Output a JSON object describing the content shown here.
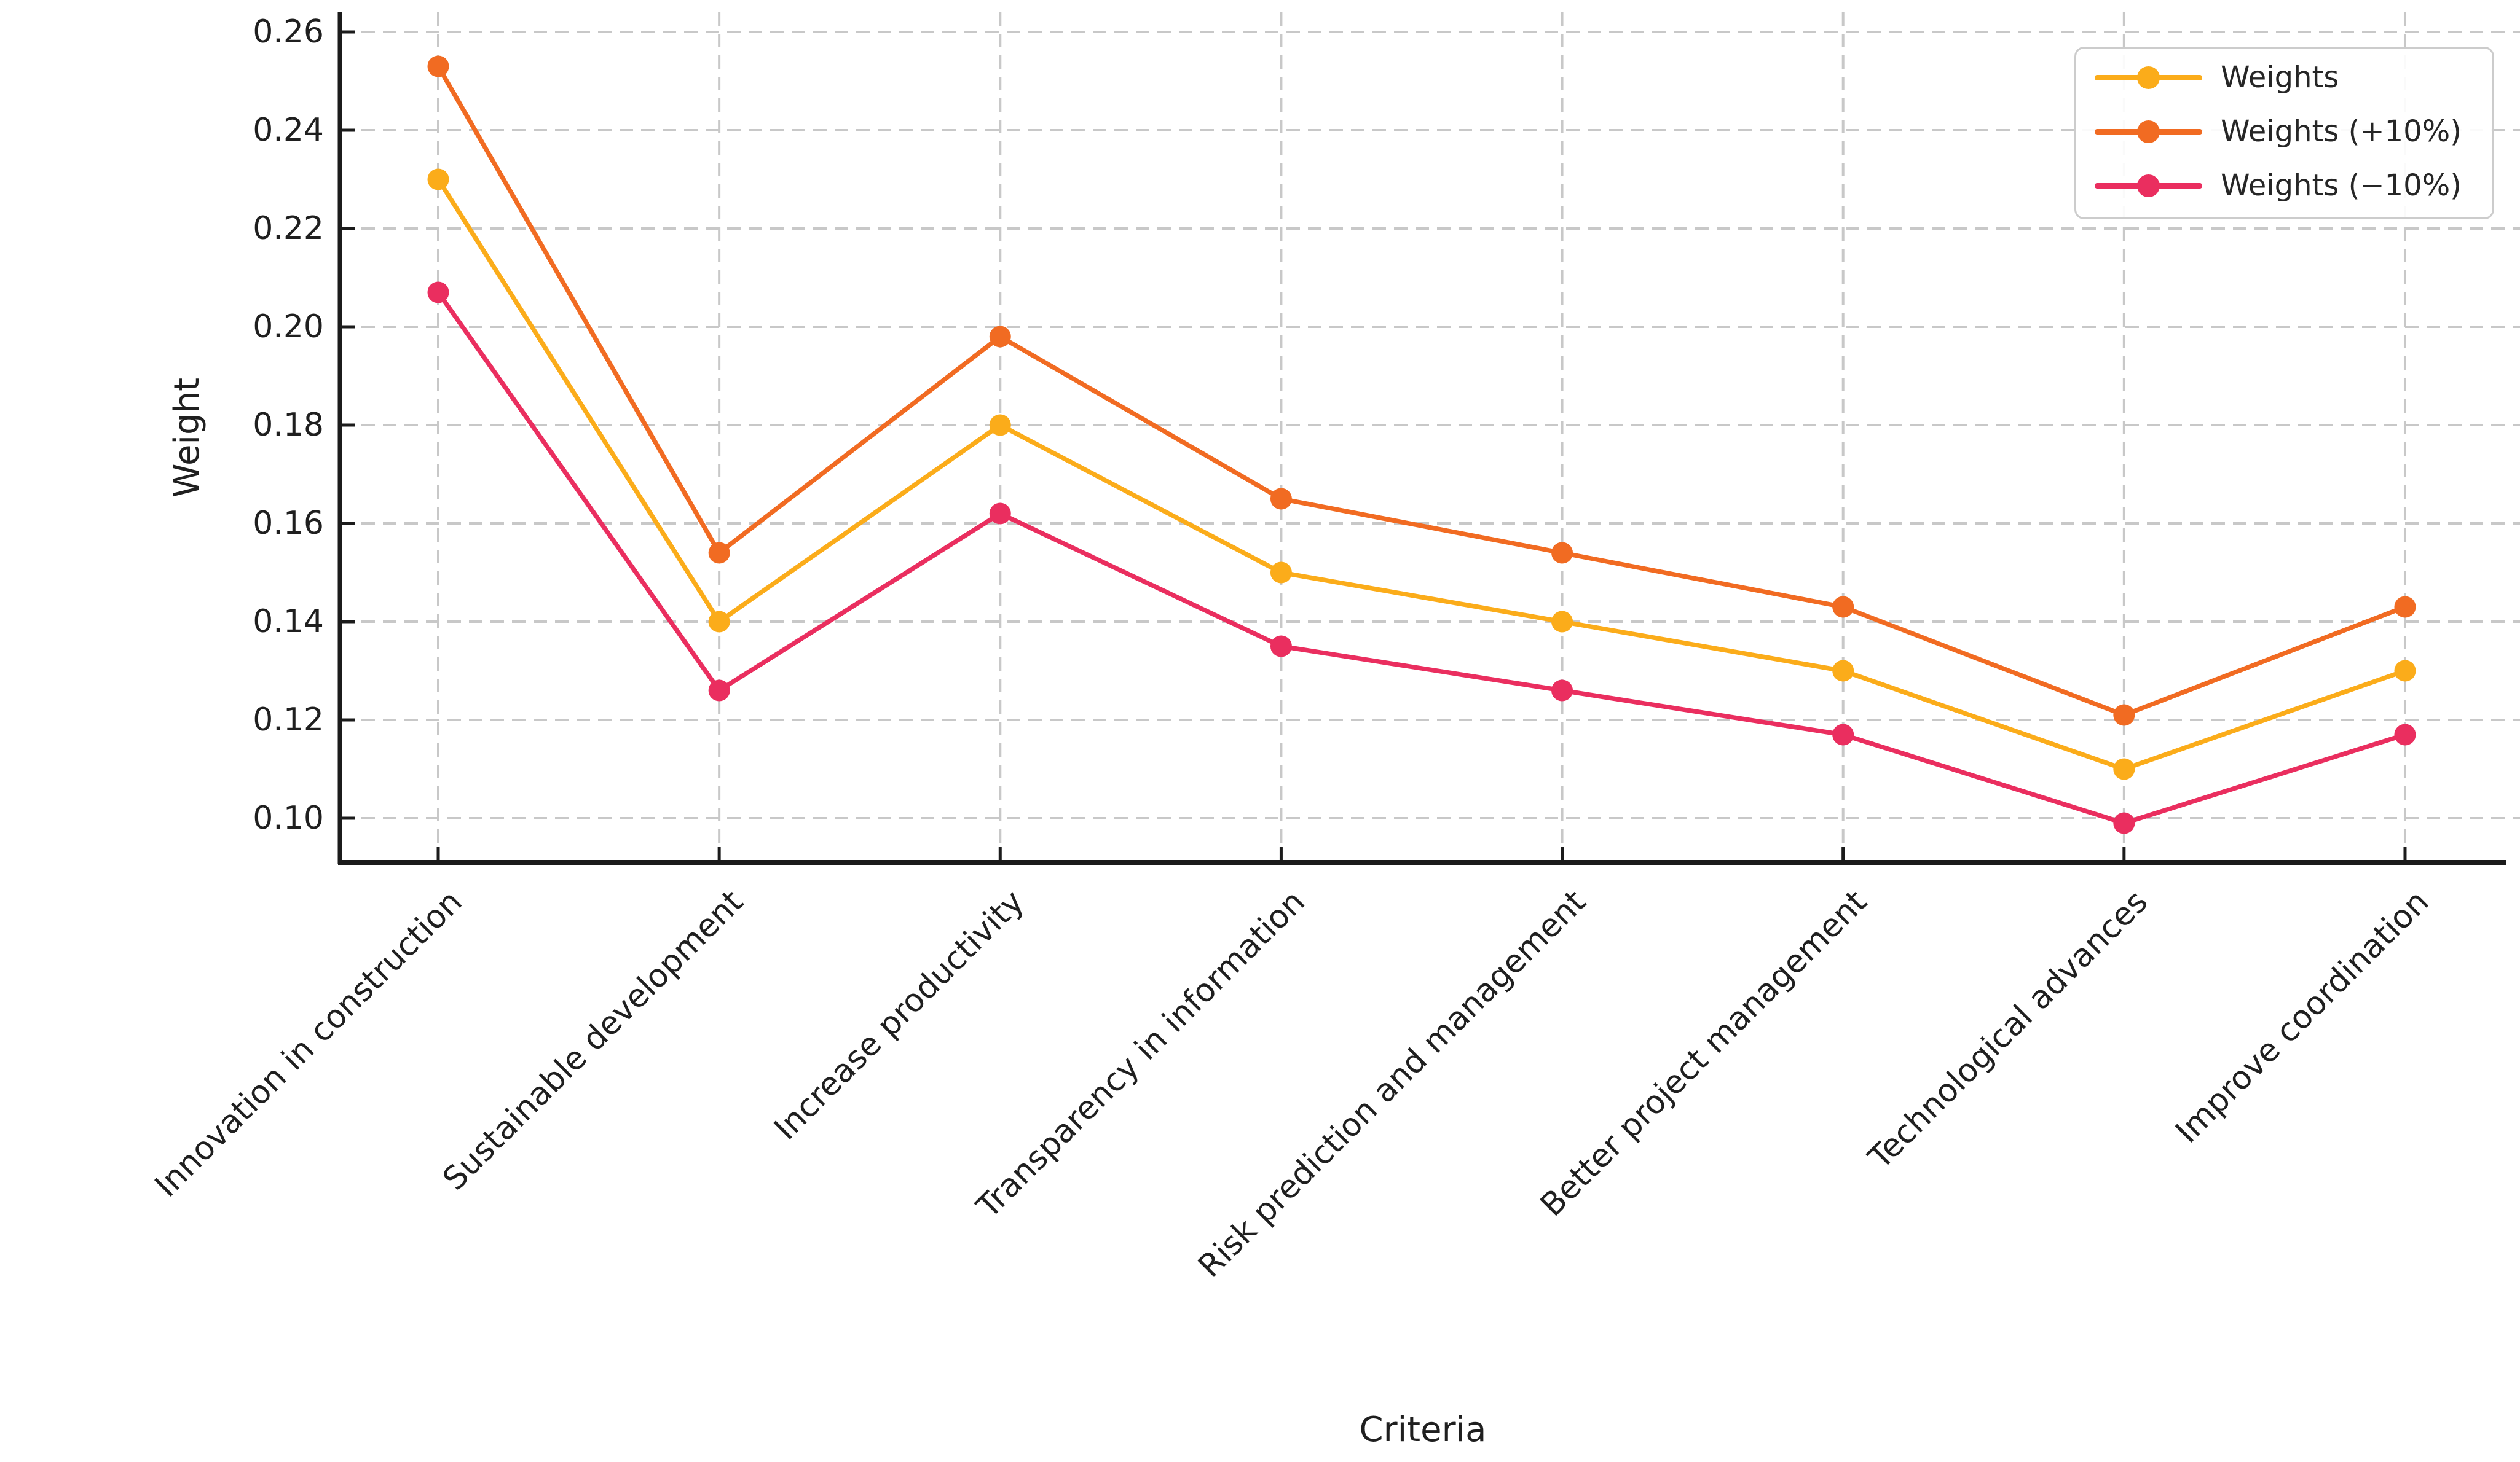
{
  "chart_data": {
    "type": "line",
    "title": "",
    "xlabel": "Criteria",
    "ylabel": "Weight",
    "categories": [
      "Innovation in construction",
      "Sustainable development",
      "Increase productivity",
      "Transparency in information",
      "Risk prediction and management",
      "Better project management",
      "Technological advances",
      "Improve coordination"
    ],
    "series": [
      {
        "name": "Weights",
        "color": "#FBAC1A",
        "values": [
          0.23,
          0.14,
          0.18,
          0.15,
          0.14,
          0.13,
          0.11,
          0.13
        ]
      },
      {
        "name": "Weights (+10%)",
        "color": "#F16B22",
        "values": [
          0.253,
          0.154,
          0.198,
          0.165,
          0.154,
          0.143,
          0.121,
          0.143
        ]
      },
      {
        "name": "Weights (−10%)",
        "color": "#EA2E5F",
        "values": [
          0.207,
          0.126,
          0.162,
          0.135,
          0.126,
          0.117,
          0.099,
          0.117
        ]
      }
    ],
    "yticks": [
      0.26,
      0.24,
      0.22,
      0.2,
      0.18,
      0.16,
      0.14,
      0.12,
      0.1
    ],
    "ytick_labels": [
      "0.26",
      "0.24",
      "0.22",
      "0.20",
      "0.18",
      "0.16",
      "0.14",
      "0.12",
      "0.10"
    ],
    "ylim": [
      0.091,
      0.264
    ],
    "grid": "dashed",
    "legend_position": "upper right"
  }
}
